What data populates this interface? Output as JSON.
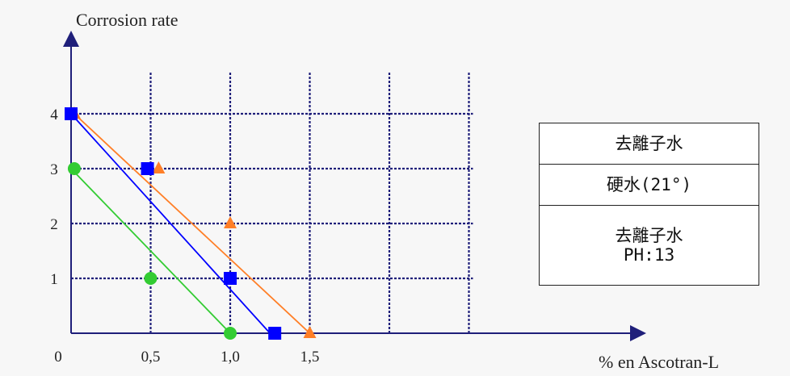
{
  "chart_data": {
    "type": "line",
    "title": "",
    "ylabel": "Corrosion rate",
    "xlabel": "% en Ascotran-L",
    "xlim": [
      0,
      3.0
    ],
    "ylim": [
      0,
      4.7
    ],
    "x_ticks": [
      {
        "value": 0,
        "label": "0"
      },
      {
        "value": 0.5,
        "label": "0,5"
      },
      {
        "value": 1.0,
        "label": "1,0"
      },
      {
        "value": 1.5,
        "label": "1,5"
      }
    ],
    "y_ticks": [
      {
        "value": 1,
        "label": "1"
      },
      {
        "value": 2,
        "label": "2"
      },
      {
        "value": 3,
        "label": "3"
      },
      {
        "value": 4,
        "label": "4"
      }
    ],
    "grid_x": [
      0.5,
      1.0,
      1.5,
      2.0,
      2.5
    ],
    "grid_y": [
      1,
      2,
      3,
      4
    ],
    "grid": true,
    "series": [
      {
        "color": "#ff7f27",
        "marker": "triangle",
        "points": [
          [
            0.02,
            4
          ],
          [
            0.55,
            3
          ],
          [
            1.0,
            2
          ],
          [
            1.5,
            0
          ]
        ],
        "line": [
          [
            0.02,
            4
          ],
          [
            1.5,
            0
          ]
        ]
      },
      {
        "color": "#0000ff",
        "marker": "square",
        "points": [
          [
            0.0,
            4
          ],
          [
            0.48,
            3
          ],
          [
            1.0,
            1
          ],
          [
            1.28,
            0
          ]
        ],
        "line": [
          [
            0.0,
            4
          ],
          [
            1.25,
            0
          ]
        ]
      },
      {
        "color": "#33cc33",
        "marker": "circle",
        "points": [
          [
            0.02,
            3
          ],
          [
            0.5,
            1
          ],
          [
            1.0,
            0
          ]
        ],
        "line": [
          [
            0.0,
            3
          ],
          [
            1.0,
            0
          ]
        ]
      }
    ]
  },
  "legend": {
    "rows": [
      "去離子水",
      "硬水(21°)",
      "去離子水\nPH:13"
    ]
  }
}
